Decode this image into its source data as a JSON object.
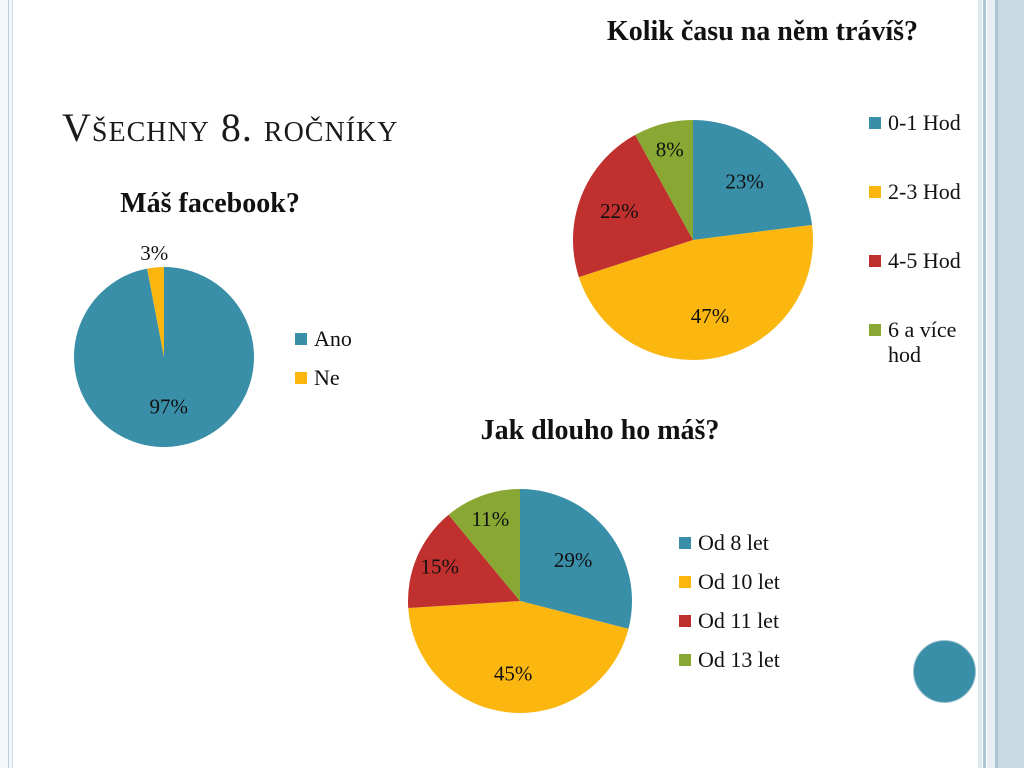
{
  "slide_title": "Všechny 8. ročníky",
  "colors": {
    "teal": "#3a8fa8",
    "gold": "#fbb610",
    "red": "#c0302e",
    "green": "#88a833",
    "accent_circle": "#3a8fa8"
  },
  "chart_data": [
    {
      "type": "pie",
      "title": "Máš facebook?",
      "categories": [
        "Ano",
        "Ne"
      ],
      "values": [
        97,
        3
      ],
      "labels": [
        "97%",
        "3%"
      ],
      "colors": [
        "#3a8fa8",
        "#fbb610"
      ],
      "legend": "right"
    },
    {
      "type": "pie",
      "title": "Kolik času na něm trávíš?",
      "categories": [
        "0-1 Hod",
        "2-3 Hod",
        "4-5 Hod",
        "6 a více hod"
      ],
      "values": [
        23,
        47,
        22,
        8
      ],
      "labels": [
        "23%",
        "47%",
        "22%",
        "8%"
      ],
      "colors": [
        "#3a8fa8",
        "#fbb610",
        "#c0302e",
        "#88a833"
      ],
      "legend": "right"
    },
    {
      "type": "pie",
      "title": "Jak dlouho ho máš?",
      "categories": [
        "Od 8 let",
        "Od 10 let",
        "Od 11 let",
        "Od 13 let"
      ],
      "values": [
        29,
        45,
        15,
        11
      ],
      "labels": [
        "29%",
        "45%",
        "15%",
        "11%"
      ],
      "colors": [
        "#3a8fa8",
        "#fbb610",
        "#c0302e",
        "#88a833"
      ],
      "legend": "right"
    }
  ]
}
